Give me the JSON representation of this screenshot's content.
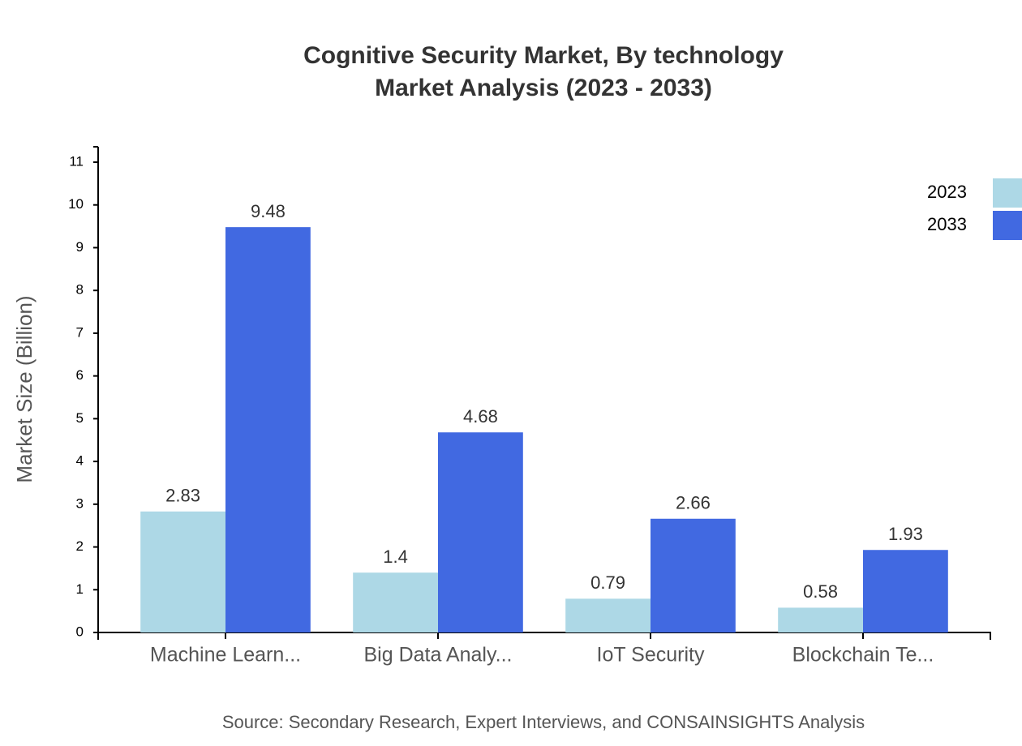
{
  "chart_data": {
    "type": "bar",
    "title": "Cognitive Security Market, By technology",
    "subtitle": "Market Analysis (2023 - 2033)",
    "y_label": "Market Size (Billion)",
    "source": "Source: Secondary Research, Expert Interviews, and CONSAINSIGHTS Analysis",
    "categories": [
      "Machine Learn...",
      "Big Data Analy...",
      "IoT Security",
      "Blockchain Te..."
    ],
    "series": [
      {
        "name": "2023",
        "color": "#add8e6",
        "values": [
          2.83,
          1.4,
          0.79,
          0.58
        ]
      },
      {
        "name": "2033",
        "color": "#4169e1",
        "values": [
          9.48,
          4.68,
          2.66,
          1.93
        ]
      }
    ],
    "ylim": [
      0,
      11.36
    ],
    "yticks": [
      0,
      1,
      2,
      3,
      4,
      5,
      6,
      7,
      8,
      9,
      10,
      11
    ],
    "legend": "top-right"
  }
}
